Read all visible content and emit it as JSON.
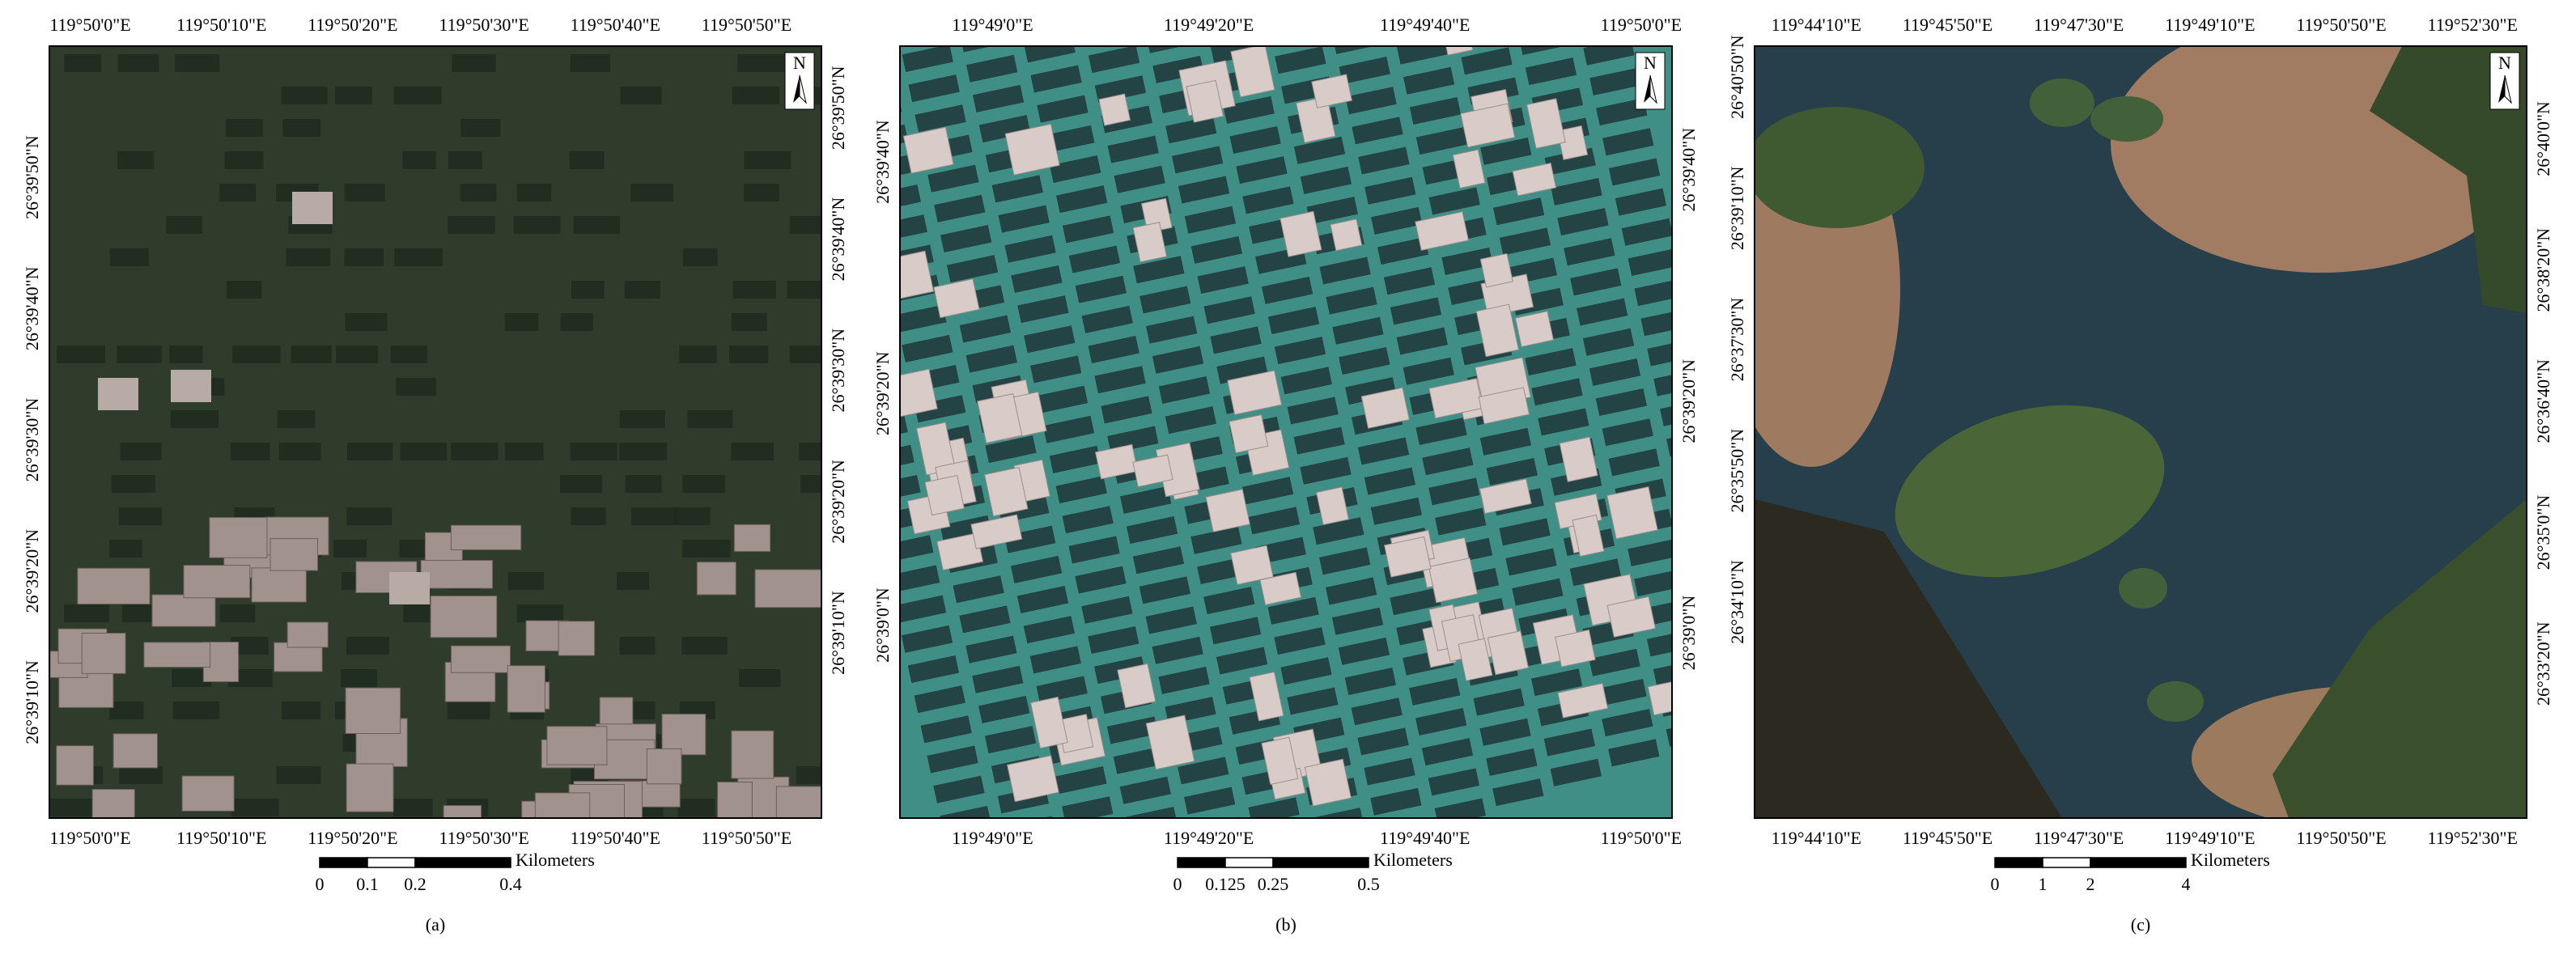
{
  "panels": [
    {
      "label": "(a)",
      "north": "N",
      "top_labels": [
        "119°50'0\"E",
        "119°50'10\"E",
        "119°50'20\"E",
        "119°50'30\"E",
        "119°50'40\"E",
        "119°50'50\"E"
      ],
      "bottom_labels": [
        "119°50'0\"E",
        "119°50'10\"E",
        "119°50'20\"E",
        "119°50'30\"E",
        "119°50'40\"E",
        "119°50'50\"E"
      ],
      "left_labels": [
        "26°39'50\"N",
        "26°39'40\"N",
        "26°39'30\"N",
        "26°39'20\"N",
        "26°39'10\"N"
      ],
      "right_labels": [
        "26°39'50\"N",
        "26°39'40\"N",
        "26°39'30\"N",
        "26°39'20\"N",
        "26°39'10\"N"
      ],
      "scale_bar": {
        "unit": "Kilometers",
        "labels": [
          "0",
          "0.1",
          "0.2",
          "0.4"
        ]
      }
    },
    {
      "label": "(b)",
      "north": "N",
      "top_labels": [
        "119°49'0\"E",
        "119°49'20\"E",
        "119°49'40\"E",
        "119°50'0\"E"
      ],
      "bottom_labels": [
        "119°49'0\"E",
        "119°49'20\"E",
        "119°49'40\"E",
        "119°50'0\"E"
      ],
      "left_labels": [
        "26°39'40\"N",
        "26°39'20\"N",
        "26°39'0\"N"
      ],
      "right_labels": [
        "26°39'40\"N",
        "26°39'20\"N",
        "26°39'0\"N"
      ],
      "scale_bar": {
        "unit": "Kilometers",
        "labels": [
          "0",
          "0.125",
          "0.25",
          "0.5"
        ]
      }
    },
    {
      "label": "(c)",
      "north": "N",
      "top_labels": [
        "119°44'10\"E",
        "119°45'50\"E",
        "119°47'30\"E",
        "119°49'10\"E",
        "119°50'50\"E",
        "119°52'30\"E"
      ],
      "bottom_labels": [
        "119°44'10\"E",
        "119°45'50\"E",
        "119°47'30\"E",
        "119°49'10\"E",
        "119°50'50\"E",
        "119°52'30\"E"
      ],
      "left_labels": [
        "26°40'50\"N",
        "26°39'10\"N",
        "26°37'30\"N",
        "26°35'50\"N",
        "26°34'10\"N"
      ],
      "right_labels": [
        "26°40'0\"N",
        "26°38'20\"N",
        "26°36'40\"N",
        "26°35'0\"N",
        "26°33'20\"N"
      ],
      "scale_bar": {
        "unit": "Kilometers",
        "labels": [
          "0",
          "1",
          "2",
          "4"
        ]
      }
    }
  ]
}
